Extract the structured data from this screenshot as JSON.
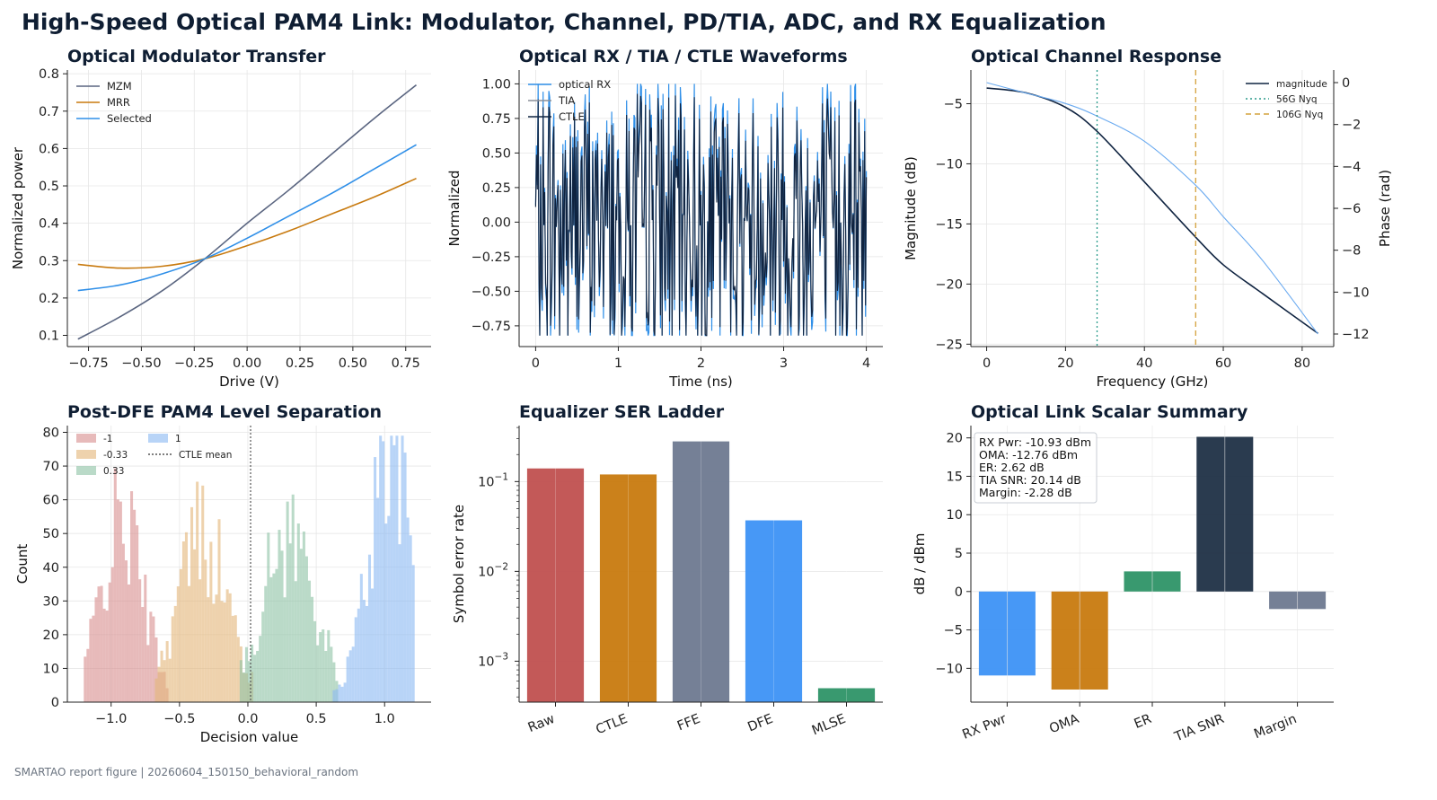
{
  "title": "High-Speed Optical PAM4 Link: Modulator, Channel, PD/TIA, ADC, and RX Equalization",
  "footer": "SMARTAO report figure | 20260604_150150_behavioral_random",
  "colors": {
    "slate": "#5a6580",
    "orange": "#c87a0f",
    "blue": "#2f8fe8",
    "dark": "#0f2340",
    "red": "#c0504f",
    "green": "#2e9467",
    "teal": "#2a9a8a",
    "gold": "#d4a23c",
    "grid": "#e6e6e6"
  },
  "chart_data": [
    {
      "type": "line",
      "title": "Optical Modulator Transfer",
      "xlabel": "Drive (V)",
      "ylabel": "Normalized power",
      "xlim": [
        -0.85,
        0.87
      ],
      "ylim": [
        0.07,
        0.81
      ],
      "xticks": [
        -0.75,
        -0.5,
        -0.25,
        0,
        0.25,
        0.5,
        0.75
      ],
      "xtick_labels": [
        "−0.75",
        "−0.50",
        "−0.25",
        "0.00",
        "0.25",
        "0.50",
        "0.75"
      ],
      "yticks": [
        0.1,
        0.2,
        0.3,
        0.4,
        0.5,
        0.6,
        0.7,
        0.8
      ],
      "ytick_labels": [
        "0.1",
        "0.2",
        "0.3",
        "0.4",
        "0.5",
        "0.6",
        "0.7",
        "0.8"
      ],
      "legend": "upper-left",
      "x": [
        -0.8,
        -0.6,
        -0.4,
        -0.2,
        0,
        0.2,
        0.4,
        0.6,
        0.8
      ],
      "series": [
        {
          "name": "MZM",
          "color": "#5a6580",
          "values": [
            0.09,
            0.15,
            0.22,
            0.305,
            0.4,
            0.49,
            0.585,
            0.68,
            0.77
          ]
        },
        {
          "name": "MRR",
          "color": "#c87a0f",
          "values": [
            0.29,
            0.28,
            0.285,
            0.305,
            0.34,
            0.38,
            0.425,
            0.47,
            0.52
          ]
        },
        {
          "name": "Selected",
          "color": "#2f8fe8",
          "values": [
            0.22,
            0.235,
            0.265,
            0.305,
            0.36,
            0.42,
            0.48,
            0.545,
            0.61
          ]
        }
      ]
    },
    {
      "type": "line",
      "title": "Optical RX / TIA / CTLE Waveforms",
      "xlabel": "Time (ns)",
      "ylabel": "Normalized",
      "xlim": [
        -0.2,
        4.2
      ],
      "ylim": [
        -0.9,
        1.1
      ],
      "xticks": [
        0,
        1,
        2,
        3,
        4
      ],
      "xtick_labels": [
        "0",
        "1",
        "2",
        "3",
        "4"
      ],
      "yticks": [
        -0.75,
        -0.5,
        -0.25,
        0,
        0.25,
        0.5,
        0.75,
        1.0
      ],
      "ytick_labels": [
        "−0.75",
        "−0.50",
        "−0.25",
        "0.00",
        "0.25",
        "0.50",
        "0.75",
        "1.00"
      ],
      "legend": "upper-left",
      "series": [
        {
          "name": "optical RX",
          "color": "#2f8fe8"
        },
        {
          "name": "TIA",
          "color": "#8a8f99"
        },
        {
          "name": "CTLE",
          "color": "#0f2340"
        }
      ],
      "num_samples": 400,
      "peak_range": [
        -0.82,
        1.0
      ]
    },
    {
      "type": "line",
      "title": "Optical Channel Response",
      "xlabel": "Frequency (GHz)",
      "ylabel": "Magnitude (dB)",
      "ylabel2": "Phase (rad)",
      "xlim": [
        -4,
        88
      ],
      "ylim": [
        -25.2,
        -2.2
      ],
      "ylim2": [
        -12.6,
        0.6
      ],
      "xticks": [
        0,
        20,
        40,
        60,
        80
      ],
      "xtick_labels": [
        "0",
        "20",
        "40",
        "60",
        "80"
      ],
      "yticks": [
        -25,
        -20,
        -15,
        -10,
        -5
      ],
      "ytick_labels": [
        "−25",
        "−20",
        "−15",
        "−10",
        "−5"
      ],
      "yticks2": [
        -12,
        -10,
        -8,
        -6,
        -4,
        -2,
        0
      ],
      "ytick_labels2": [
        "−12",
        "−10",
        "−8",
        "−6",
        "−4",
        "−2",
        "0"
      ],
      "legend": "upper-right",
      "x": [
        0,
        10,
        20,
        28,
        40,
        53,
        60,
        70,
        84
      ],
      "series": [
        {
          "name": "magnitude",
          "color": "#0f2340",
          "values": [
            -3.7,
            -4.1,
            -5.3,
            -7.3,
            -11.5,
            -16.1,
            -18.4,
            -20.8,
            -24.1
          ]
        },
        {
          "name": "phase",
          "axis": "right",
          "color": "#6aaaf0",
          "values": [
            0,
            -0.5,
            -1.0,
            -1.6,
            -2.8,
            -4.9,
            -6.4,
            -8.5,
            -12.0
          ]
        }
      ],
      "markers": [
        {
          "name": "56G Nyq",
          "x": 28,
          "color": "#2a9a8a",
          "style": "dotted"
        },
        {
          "name": "106G Nyq",
          "x": 53,
          "color": "#d4a23c",
          "style": "dashed"
        }
      ]
    },
    {
      "type": "histogram",
      "title": "Post-DFE PAM4 Level Separation",
      "xlabel": "Decision value",
      "ylabel": "Count",
      "xlim": [
        -1.32,
        1.34
      ],
      "ylim": [
        0,
        82
      ],
      "xticks": [
        -1,
        -0.5,
        0,
        0.5,
        1
      ],
      "xtick_labels": [
        "−1.0",
        "−0.5",
        "0.0",
        "0.5",
        "1.0"
      ],
      "yticks": [
        0,
        10,
        20,
        30,
        40,
        50,
        60,
        70,
        80
      ],
      "ytick_labels": [
        "0",
        "10",
        "20",
        "30",
        "40",
        "50",
        "60",
        "70",
        "80"
      ],
      "legend": "upper-left",
      "bin_width": 0.02,
      "series": [
        {
          "name": "-1",
          "color": "#d98f8f",
          "center": -0.92,
          "spread": 0.16,
          "peak": 54,
          "range": [
            -1.2,
            -0.58
          ]
        },
        {
          "name": "-0.33",
          "color": "#e3b77a",
          "center": -0.33,
          "spread": 0.18,
          "peak": 52,
          "range": [
            -0.68,
            0.04
          ]
        },
        {
          "name": "0.33",
          "color": "#8fc4a7",
          "center": 0.3,
          "spread": 0.19,
          "peak": 51,
          "range": [
            -0.06,
            0.66
          ]
        },
        {
          "name": "1",
          "color": "#8db9f2",
          "center": 1.04,
          "spread": 0.16,
          "peak": 72,
          "range": [
            0.62,
            1.22
          ]
        }
      ],
      "vline": {
        "name": "CTLE mean",
        "x": 0.02,
        "color": "#555555"
      }
    },
    {
      "type": "bar",
      "title": "Equalizer SER Ladder",
      "ylabel": "Symbol error rate",
      "yscale": "log",
      "ylim": [
        0.00035,
        0.42
      ],
      "yticks": [
        0.001,
        0.01,
        0.1
      ],
      "ytick_labels": [
        "10−3",
        "10−2",
        "10−1"
      ],
      "categories": [
        "Raw",
        "CTLE",
        "FFE",
        "DFE",
        "MLSE"
      ],
      "values": [
        0.14,
        0.12,
        0.28,
        0.037,
        0.0005
      ],
      "colors": [
        "#c0504f",
        "#c87a0f",
        "#6e7990",
        "#3d92f5",
        "#2e9467"
      ]
    },
    {
      "type": "bar",
      "title": "Optical Link Scalar Summary",
      "ylabel": "dB / dBm",
      "ylim": [
        -14.4,
        21.6
      ],
      "yticks": [
        -10,
        -5,
        0,
        5,
        10,
        15,
        20
      ],
      "ytick_labels": [
        "−10",
        "−5",
        "0",
        "5",
        "10",
        "15",
        "20"
      ],
      "categories": [
        "RX Pwr",
        "OMA",
        "ER",
        "TIA SNR",
        "Margin"
      ],
      "values": [
        -10.93,
        -12.76,
        2.62,
        20.14,
        -2.28
      ],
      "colors": [
        "#3d92f5",
        "#c87a0f",
        "#2e9467",
        "#1f3046",
        "#6e7990"
      ],
      "annotation": [
        "RX Pwr: -10.93 dBm",
        "OMA: -12.76 dBm",
        "ER: 2.62 dB",
        "TIA SNR: 20.14 dB",
        "Margin: -2.28 dB"
      ]
    }
  ]
}
